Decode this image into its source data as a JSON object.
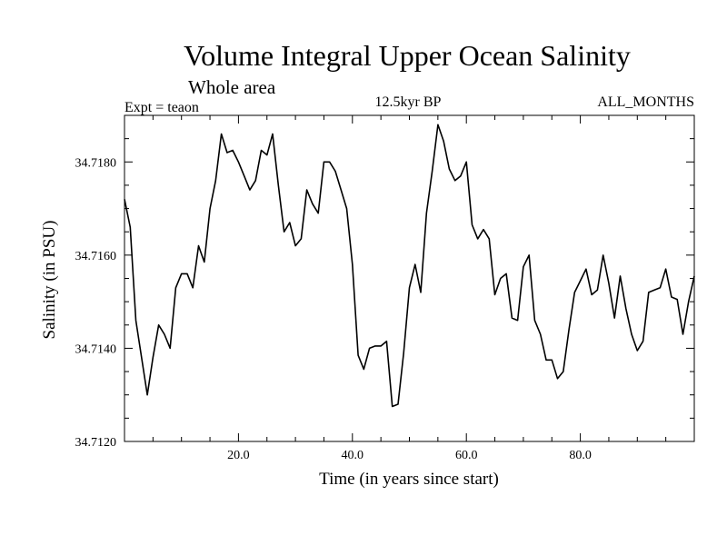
{
  "chart_data": {
    "type": "line",
    "title": "Volume Integral Upper Ocean Salinity",
    "subtitle": "Whole area",
    "experiment": "Expt = teaon",
    "period": "12.5kyr BP",
    "months": "ALL_MONTHS",
    "xlabel": "Time (in years since start)",
    "ylabel": "Salinity (in PSU)",
    "xlim": [
      0,
      100
    ],
    "ylim": [
      34.712,
      34.719
    ],
    "x_ticks": [
      20,
      40,
      60,
      80
    ],
    "x_tick_labels": [
      "20.0",
      "40.0",
      "60.0",
      "80.0"
    ],
    "y_ticks": [
      34.712,
      34.714,
      34.716,
      34.718
    ],
    "y_tick_labels": [
      "34.7120",
      "34.7140",
      "34.7160",
      "34.7180"
    ],
    "series": [
      {
        "name": "Salinity",
        "color": "#000000",
        "x": [
          0,
          1,
          2,
          3,
          4,
          5,
          6,
          7,
          8,
          9,
          10,
          11,
          12,
          13,
          14,
          15,
          16,
          17,
          18,
          19,
          20,
          21,
          22,
          23,
          24,
          25,
          26,
          27,
          28,
          29,
          30,
          31,
          32,
          33,
          34,
          35,
          36,
          37,
          38,
          39,
          40,
          41,
          42,
          43,
          44,
          45,
          46,
          47,
          48,
          49,
          50,
          51,
          52,
          53,
          54,
          55,
          56,
          57,
          58,
          59,
          60,
          61,
          62,
          63,
          64,
          65,
          66,
          67,
          68,
          69,
          70,
          71,
          72,
          73,
          74,
          75,
          76,
          77,
          78,
          79,
          80,
          81,
          82,
          83,
          84,
          85,
          86,
          87,
          88,
          89,
          90,
          91,
          92,
          93,
          94,
          95,
          96,
          97,
          98,
          99,
          100
        ],
        "values": [
          34.7172,
          34.7166,
          34.7146,
          34.7138,
          34.713,
          34.7138,
          34.7145,
          34.7143,
          34.714,
          34.7153,
          34.7156,
          34.7156,
          34.7153,
          34.7162,
          34.71585,
          34.717,
          34.7176,
          34.7186,
          34.7182,
          34.71825,
          34.718,
          34.7177,
          34.7174,
          34.7176,
          34.71825,
          34.71815,
          34.7186,
          34.7175,
          34.7165,
          34.7167,
          34.7162,
          34.71635,
          34.7174,
          34.7171,
          34.7169,
          34.718,
          34.718,
          34.7178,
          34.7174,
          34.717,
          34.7158,
          34.71385,
          34.71355,
          34.714,
          34.71405,
          34.71405,
          34.71415,
          34.71275,
          34.7128,
          34.7139,
          34.7153,
          34.7158,
          34.7152,
          34.7169,
          34.7178,
          34.7188,
          34.71845,
          34.71785,
          34.7176,
          34.7177,
          34.718,
          34.71665,
          34.71635,
          34.71655,
          34.71635,
          34.71515,
          34.7155,
          34.7156,
          34.71465,
          34.7146,
          34.71575,
          34.716,
          34.7146,
          34.7143,
          34.71375,
          34.71375,
          34.71335,
          34.7135,
          34.7144,
          34.7152,
          34.71545,
          34.7157,
          34.71515,
          34.71525,
          34.716,
          34.7154,
          34.71465,
          34.71555,
          34.71485,
          34.7143,
          34.71395,
          34.71415,
          34.7152,
          34.71525,
          34.7153,
          34.7157,
          34.7151,
          34.71505,
          34.7143,
          34.715,
          34.71555
        ]
      }
    ]
  }
}
